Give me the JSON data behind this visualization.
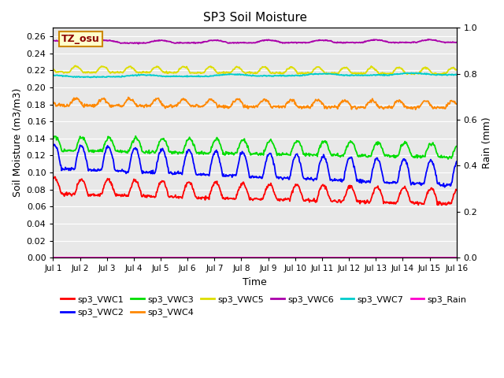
{
  "title": "SP3 Soil Moisture",
  "xlabel": "Time",
  "ylabel_left": "Soil Moisture (m3/m3)",
  "ylabel_right": "Rain (mm)",
  "tz_label": "TZ_osu",
  "ylim_left": [
    0.0,
    0.27
  ],
  "ylim_right": [
    0.0,
    1.0
  ],
  "background_color": "#e8e8e8",
  "series_colors": {
    "sp3_VWC1": "#ff0000",
    "sp3_VWC2": "#0000ff",
    "sp3_VWC3": "#00dd00",
    "sp3_VWC4": "#ff8800",
    "sp3_VWC5": "#dddd00",
    "sp3_VWC6": "#aa00aa",
    "sp3_VWC7": "#00cccc",
    "sp3_Rain": "#ff00cc"
  },
  "xtick_labels": [
    "Jul 1",
    "Jul 2",
    "Jul 3",
    "Jul 4",
    "Jul 5",
    "Jul 6",
    "Jul 7",
    "Jul 8",
    "Jul 9",
    "Jul 10",
    "Jul 11",
    "Jul 12",
    "Jul 13",
    "Jul 14",
    "Jul 15",
    "Jul 16"
  ],
  "yticks_left": [
    0.0,
    0.02,
    0.04,
    0.06,
    0.08,
    0.1,
    0.12,
    0.14,
    0.16,
    0.18,
    0.2,
    0.22,
    0.24,
    0.26
  ],
  "yticks_right": [
    0.0,
    0.2,
    0.4,
    0.6,
    0.8,
    1.0
  ],
  "legend_row1": [
    "sp3_VWC1",
    "sp3_VWC2",
    "sp3_VWC3",
    "sp3_VWC4",
    "sp3_VWC5",
    "sp3_VWC6"
  ],
  "legend_row2": [
    "sp3_VWC7",
    "sp3_Rain"
  ]
}
